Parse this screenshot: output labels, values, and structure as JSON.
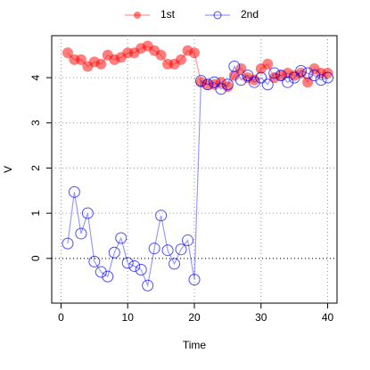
{
  "chart_data": {
    "type": "line",
    "x_label": "Time",
    "y_label": "V",
    "x": [
      1,
      2,
      3,
      4,
      5,
      6,
      7,
      8,
      9,
      10,
      11,
      12,
      13,
      14,
      15,
      16,
      17,
      18,
      19,
      20,
      21,
      22,
      23,
      24,
      25,
      26,
      27,
      28,
      29,
      30,
      31,
      32,
      33,
      34,
      35,
      36,
      37,
      38,
      39,
      40
    ],
    "series": [
      {
        "name": "1st",
        "color": "#ff0000",
        "marker": "filled",
        "values": [
          4.55,
          4.4,
          4.4,
          4.25,
          4.35,
          4.3,
          4.5,
          4.4,
          4.45,
          4.55,
          4.55,
          4.65,
          4.7,
          4.6,
          4.5,
          4.3,
          4.3,
          4.4,
          4.6,
          4.55,
          3.9,
          3.85,
          3.85,
          3.9,
          3.8,
          4.05,
          4.2,
          4.0,
          3.95,
          4.2,
          4.3,
          4.0,
          4.05,
          4.1,
          4.05,
          4.1,
          3.9,
          4.2,
          4.1,
          4.1
        ]
      },
      {
        "name": "2nd",
        "color": "#0000ff",
        "marker": "open",
        "values": [
          0.33,
          1.47,
          0.55,
          1.0,
          -0.07,
          -0.3,
          -0.4,
          0.13,
          0.45,
          -0.1,
          -0.17,
          -0.25,
          -0.6,
          0.22,
          0.95,
          0.18,
          -0.12,
          0.2,
          0.4,
          -0.47,
          3.93,
          3.85,
          3.9,
          3.75,
          3.85,
          4.25,
          3.95,
          4.05,
          3.9,
          4.0,
          3.85,
          4.1,
          4.05,
          3.9,
          4.0,
          4.15,
          4.1,
          4.05,
          3.95,
          4.0
        ]
      }
    ],
    "xlim": [
      -1.4,
      41.4
    ],
    "ylim": [
      -0.99,
      4.93
    ],
    "xticks": [
      0,
      10,
      20,
      30,
      40
    ],
    "yticks": [
      0,
      1,
      2,
      3,
      4
    ],
    "grid": true,
    "zero_line": true,
    "legend": "top"
  }
}
